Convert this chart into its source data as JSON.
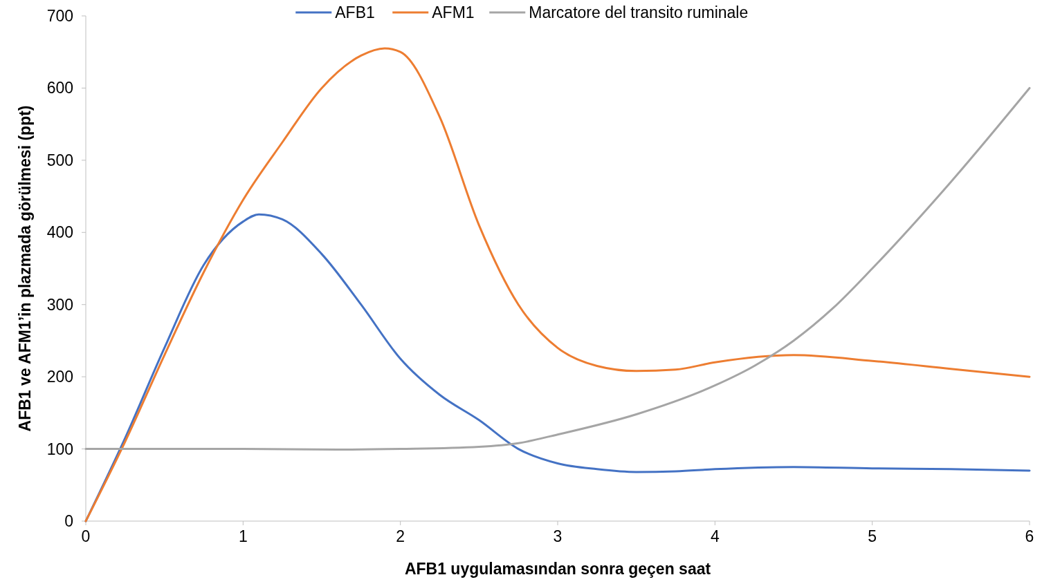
{
  "chart_data": {
    "type": "line",
    "xlabel": "AFB1 uygulamasından sonra geçen saat",
    "ylabel": "AFB1 ve AFM1’in plazmada görülmesi (ppt)",
    "xlim": [
      0,
      6
    ],
    "ylim": [
      0,
      700
    ],
    "xticks": [
      0,
      1,
      2,
      3,
      4,
      5,
      6
    ],
    "yticks": [
      0,
      100,
      200,
      300,
      400,
      500,
      600,
      700
    ],
    "grid": false,
    "legend": "top",
    "marker": "none",
    "line_style": "solid",
    "series": [
      {
        "name": "AFB1",
        "color": "#4472c4",
        "x": [
          0,
          0.25,
          0.5,
          0.75,
          1,
          1.1,
          1.25,
          1.5,
          1.75,
          2,
          2.25,
          2.5,
          2.75,
          3,
          3.25,
          3.5,
          3.75,
          4,
          4.5,
          5,
          5.5,
          6
        ],
        "values": [
          0,
          115,
          240,
          355,
          415,
          425,
          418,
          370,
          300,
          225,
          175,
          140,
          100,
          80,
          72,
          68,
          69,
          72,
          75,
          73,
          72,
          70
        ]
      },
      {
        "name": "AFM1",
        "color": "#ed7d31",
        "x": [
          0,
          0.25,
          0.5,
          0.75,
          1,
          1.25,
          1.5,
          1.75,
          1.9,
          2,
          2.25,
          2.5,
          2.75,
          3,
          3.25,
          3.5,
          3.75,
          4,
          4.5,
          5,
          5.5,
          6
        ],
        "values": [
          0,
          110,
          230,
          345,
          445,
          525,
          600,
          645,
          655,
          650,
          560,
          410,
          300,
          240,
          215,
          208,
          210,
          220,
          230,
          222,
          211,
          200
        ]
      },
      {
        "name": "Marcatore del transito ruminale",
        "color": "#a5a5a5",
        "x": [
          0,
          1,
          1.6,
          2,
          2.5,
          2.75,
          3,
          3.5,
          4,
          4.25,
          4.5,
          4.75,
          5,
          5.5,
          6
        ],
        "values": [
          100,
          100,
          99,
          100,
          103,
          108,
          120,
          148,
          188,
          215,
          250,
          295,
          350,
          470,
          600
        ]
      }
    ]
  }
}
